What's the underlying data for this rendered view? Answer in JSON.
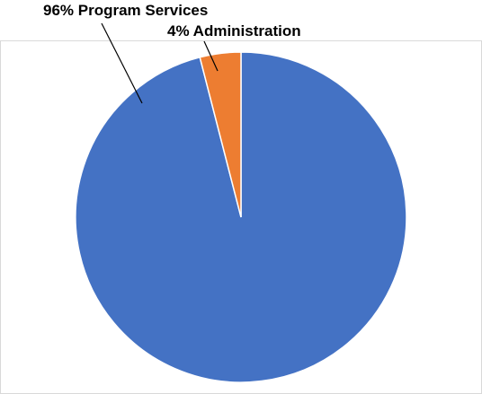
{
  "chart_data": {
    "type": "pie",
    "title": "",
    "categories": [
      "Program Services",
      "Administration"
    ],
    "values": [
      96,
      4
    ],
    "unit": "%",
    "colors": [
      "#4472c4",
      "#ed7d31"
    ],
    "data_labels": [
      "96% Program Services",
      "4% Administration"
    ],
    "legend": "none",
    "start_angle_deg": 0,
    "direction": "clockwise"
  }
}
